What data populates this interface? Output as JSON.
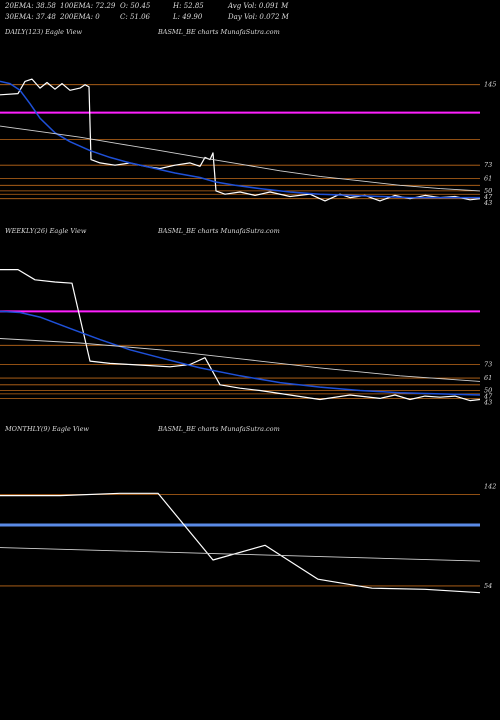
{
  "header": {
    "row1": [
      "20EMA: 38.58",
      "100EMA: 72.29",
      "O: 50.45",
      "H: 52.85",
      "Avg Vol: 0.091 M"
    ],
    "row2": [
      "30EMA: 37.48",
      "200EMA: 0",
      "C: 51.06",
      "L: 49.90",
      "Day Vol: 0.072  M"
    ]
  },
  "colors": {
    "price": "#ffffff",
    "ema_fast": "#1e50d8",
    "ema_slow": "#d0d0d0",
    "magenta": "#ff20ff",
    "orange": "#c06a1a",
    "blue_band": "#5a8ae6"
  },
  "chart_data": [
    {
      "type": "line",
      "panel": "daily",
      "title_left": "DAILY(123) Eagle   View",
      "title_center": "BASML_BE charts MunafaSutra.com",
      "ylim": [
        15,
        185
      ],
      "tick_labels": [
        {
          "value": 145,
          "text": "145"
        },
        {
          "value": 73,
          "text": "73"
        },
        {
          "value": 61,
          "text": "61"
        },
        {
          "value": 50,
          "text": "50"
        },
        {
          "value": 47,
          "text": "47"
        },
        {
          "value": 43,
          "text": "43"
        }
      ],
      "hlines": [
        {
          "value": 145,
          "color": "orange"
        },
        {
          "value": 120,
          "color": "magenta"
        },
        {
          "value": 96,
          "color": "orange"
        },
        {
          "value": 73,
          "color": "orange"
        },
        {
          "value": 61,
          "color": "orange"
        },
        {
          "value": 55,
          "color": "orange"
        },
        {
          "value": 50,
          "color": "orange"
        },
        {
          "value": 47,
          "color": "orange"
        },
        {
          "value": 43,
          "color": "orange"
        }
      ],
      "series": [
        {
          "color": "price",
          "width": 1.2,
          "points": [
            [
              0,
              136
            ],
            [
              18,
              137
            ],
            [
              25,
              148
            ],
            [
              32,
              150
            ],
            [
              40,
              142
            ],
            [
              47,
              147
            ],
            [
              55,
              141
            ],
            [
              62,
              146
            ],
            [
              70,
              140
            ],
            [
              80,
              142
            ],
            [
              85,
              145
            ],
            [
              89,
              143
            ],
            [
              91,
              78
            ],
            [
              100,
              75
            ],
            [
              115,
              73
            ],
            [
              130,
              75
            ],
            [
              145,
              72
            ],
            [
              160,
              70
            ],
            [
              175,
              73
            ],
            [
              190,
              75
            ],
            [
              200,
              72
            ],
            [
              205,
              80
            ],
            [
              210,
              78
            ],
            [
              213,
              84
            ],
            [
              216,
              50
            ],
            [
              225,
              47
            ],
            [
              240,
              49
            ],
            [
              255,
              46
            ],
            [
              270,
              49
            ],
            [
              290,
              45
            ],
            [
              310,
              47
            ],
            [
              325,
              41
            ],
            [
              340,
              47
            ],
            [
              350,
              44
            ],
            [
              365,
              46
            ],
            [
              380,
              41
            ],
            [
              395,
              46
            ],
            [
              410,
              43
            ],
            [
              425,
              46
            ],
            [
              440,
              44
            ],
            [
              455,
              45
            ],
            [
              470,
              42
            ],
            [
              480,
              43
            ]
          ]
        },
        {
          "color": "ema_fast",
          "width": 1.5,
          "points": [
            [
              0,
              148
            ],
            [
              10,
              146
            ],
            [
              20,
              140
            ],
            [
              30,
              128
            ],
            [
              40,
              115
            ],
            [
              55,
              102
            ],
            [
              70,
              94
            ],
            [
              90,
              86
            ],
            [
              110,
              80
            ],
            [
              130,
              75
            ],
            [
              150,
              71
            ],
            [
              175,
              66
            ],
            [
              200,
              62
            ],
            [
              215,
              58
            ],
            [
              235,
              55
            ],
            [
              260,
              52
            ],
            [
              290,
              49
            ],
            [
              320,
              47
            ],
            [
              350,
              46
            ],
            [
              380,
              45
            ],
            [
              410,
              44
            ],
            [
              440,
              44
            ],
            [
              480,
              44
            ]
          ]
        },
        {
          "color": "ema_slow",
          "width": 0.9,
          "points": [
            [
              0,
              108
            ],
            [
              40,
              103
            ],
            [
              80,
              98
            ],
            [
              120,
              92
            ],
            [
              160,
              86
            ],
            [
              200,
              80
            ],
            [
              240,
              74
            ],
            [
              280,
              68
            ],
            [
              320,
              63
            ],
            [
              360,
              59
            ],
            [
              400,
              55
            ],
            [
              440,
              52
            ],
            [
              480,
              50
            ]
          ]
        }
      ]
    },
    {
      "type": "line",
      "panel": "weekly",
      "title_left": "WEEKLY(26) Eagle   View",
      "title_center": "BASML_BE charts MunafaSutra.com",
      "ylim": [
        15,
        185
      ],
      "tick_labels": [
        {
          "value": 73,
          "text": "73"
        },
        {
          "value": 61,
          "text": "61"
        },
        {
          "value": 50,
          "text": "50"
        },
        {
          "value": 47,
          "text": "47"
        },
        {
          "value": 43,
          "text": "43"
        }
      ],
      "hlines": [
        {
          "value": 120,
          "color": "magenta"
        },
        {
          "value": 90,
          "color": "orange"
        },
        {
          "value": 73,
          "color": "orange"
        },
        {
          "value": 61,
          "color": "orange"
        },
        {
          "value": 55,
          "color": "orange"
        },
        {
          "value": 50,
          "color": "orange"
        },
        {
          "value": 47,
          "color": "orange"
        },
        {
          "value": 43,
          "color": "orange"
        }
      ],
      "series": [
        {
          "color": "price",
          "width": 1.2,
          "points": [
            [
              0,
              157
            ],
            [
              18,
              157
            ],
            [
              35,
              148
            ],
            [
              55,
              146
            ],
            [
              72,
              145
            ],
            [
              90,
              76
            ],
            [
              110,
              74
            ],
            [
              130,
              73
            ],
            [
              150,
              72
            ],
            [
              170,
              71
            ],
            [
              190,
              73
            ],
            [
              205,
              79
            ],
            [
              220,
              55
            ],
            [
              240,
              52
            ],
            [
              260,
              50
            ],
            [
              290,
              46
            ],
            [
              320,
              42
            ],
            [
              350,
              46
            ],
            [
              380,
              43
            ],
            [
              395,
              46
            ],
            [
              410,
              42
            ],
            [
              425,
              45
            ],
            [
              440,
              44
            ],
            [
              455,
              45
            ],
            [
              470,
              41
            ],
            [
              480,
              42
            ]
          ]
        },
        {
          "color": "ema_fast",
          "width": 1.5,
          "points": [
            [
              0,
              120
            ],
            [
              20,
              119
            ],
            [
              40,
              115
            ],
            [
              70,
              105
            ],
            [
              100,
              95
            ],
            [
              130,
              86
            ],
            [
              160,
              79
            ],
            [
              200,
              70
            ],
            [
              240,
              63
            ],
            [
              280,
              57
            ],
            [
              320,
              53
            ],
            [
              360,
              50
            ],
            [
              400,
              48
            ],
            [
              440,
              47
            ],
            [
              480,
              46
            ]
          ]
        },
        {
          "color": "ema_slow",
          "width": 0.9,
          "points": [
            [
              0,
              96
            ],
            [
              80,
              92
            ],
            [
              160,
              86
            ],
            [
              240,
              78
            ],
            [
              320,
              70
            ],
            [
              400,
              63
            ],
            [
              480,
              58
            ]
          ]
        }
      ]
    },
    {
      "type": "line",
      "panel": "monthly",
      "title_left": "MONTHLY(9) Eagle   View",
      "title_center": "BASML_BE charts MunafaSutra.com",
      "ylim": [
        15,
        185
      ],
      "tick_labels": [
        {
          "value": 142,
          "text": "142"
        },
        {
          "value": 54,
          "text": "54"
        }
      ],
      "hlines": [
        {
          "value": 135,
          "color": "orange"
        },
        {
          "value": 108,
          "color": "blue_band",
          "width": 3
        },
        {
          "value": 54,
          "color": "orange"
        }
      ],
      "series": [
        {
          "color": "price",
          "width": 1.2,
          "points": [
            [
              0,
              134
            ],
            [
              60,
              134
            ],
            [
              120,
              136
            ],
            [
              158,
              136
            ],
            [
              213,
              77
            ],
            [
              265,
              90
            ],
            [
              318,
              60
            ],
            [
              372,
              52
            ],
            [
              425,
              51
            ],
            [
              480,
              48
            ]
          ]
        },
        {
          "color": "ema_slow",
          "width": 0.9,
          "points": [
            [
              0,
              88
            ],
            [
              120,
              85
            ],
            [
              240,
              82
            ],
            [
              360,
              79
            ],
            [
              480,
              76
            ]
          ]
        }
      ]
    }
  ],
  "panels_layout_note": ""
}
